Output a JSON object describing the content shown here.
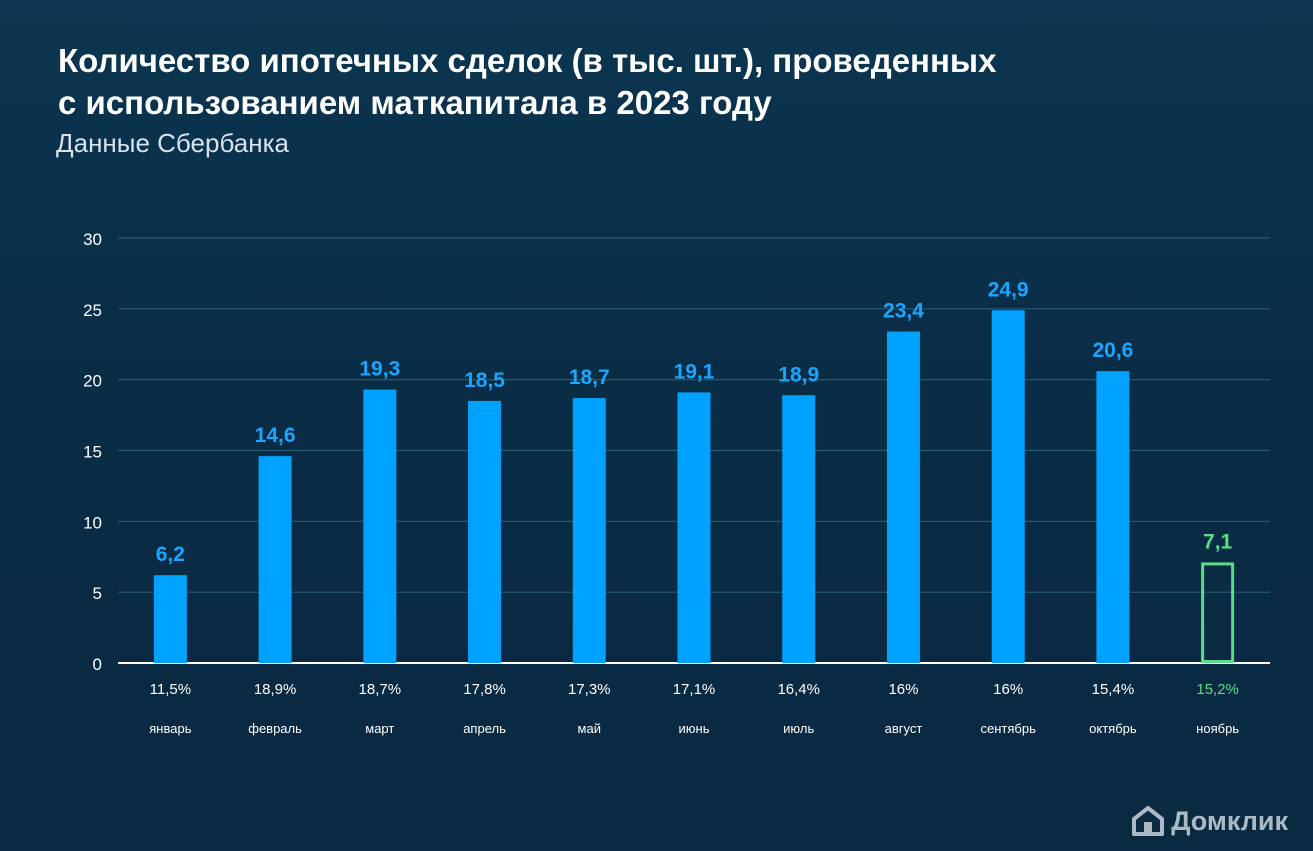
{
  "header": {
    "title": "Количество ипотечных сделок (в тыс. шт.), проведенных\nс использованием маткапитала в 2023 году",
    "subtitle": "Данные Сбербанка"
  },
  "brand": {
    "name": "Домклик",
    "icon": "house-icon"
  },
  "colors": {
    "bar": "#00a2ff",
    "value_label": "#1aa6ff",
    "highlight": "#5bdc87",
    "grid": "#2b5a73",
    "axis_text": "#ffffff"
  },
  "chart_data": {
    "type": "bar",
    "title": "Количество ипотечных сделок (в тыс. шт.), проведенных с использованием маткапитала в 2023 году",
    "subtitle": "Данные Сбербанка",
    "categories": [
      "январь",
      "февраль",
      "март",
      "апрель",
      "май",
      "июнь",
      "июль",
      "август",
      "сентябрь",
      "октябрь",
      "ноябрь"
    ],
    "values": [
      6.2,
      14.6,
      19.3,
      18.5,
      18.7,
      19.1,
      18.9,
      23.4,
      24.9,
      20.6,
      7.1
    ],
    "value_labels": [
      "6,2",
      "14,6",
      "19,3",
      "18,5",
      "18,7",
      "19,1",
      "18,9",
      "23,4",
      "24,9",
      "20,6",
      "7,1"
    ],
    "percent_labels": [
      "11,5%",
      "18,9%",
      "18,7%",
      "17,8%",
      "17,3%",
      "17,1%",
      "16,4%",
      "16%",
      "16%",
      "15,4%",
      "15,2%"
    ],
    "highlight_index": 10,
    "ylim": [
      0,
      30
    ],
    "yticks": [
      0,
      5,
      10,
      15,
      20,
      25,
      30
    ],
    "grid": true
  }
}
